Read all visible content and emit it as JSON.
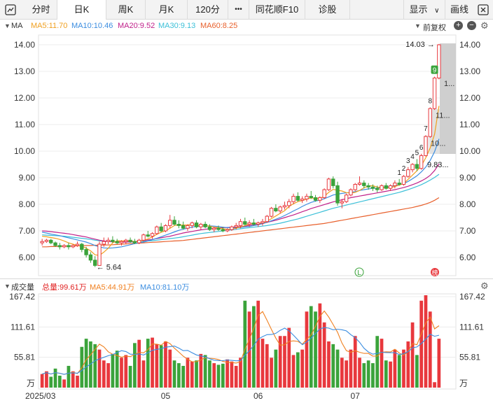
{
  "toolbar": {
    "tabs": [
      {
        "label": "分时",
        "active": false
      },
      {
        "label": "日K",
        "active": true
      },
      {
        "label": "周K",
        "active": false
      },
      {
        "label": "月K",
        "active": false
      },
      {
        "label": "120分",
        "active": false
      },
      {
        "label": "•••",
        "active": false
      },
      {
        "label": "同花顺F10",
        "active": false
      },
      {
        "label": "诊股",
        "active": false
      }
    ],
    "display_label": "显示",
    "draw_label": "画线"
  },
  "ma_legend": {
    "name": "MA",
    "items": [
      {
        "label": "MA5:11.70",
        "color": "#f0a020"
      },
      {
        "label": "MA10:10.46",
        "color": "#3b8de0"
      },
      {
        "label": "MA20:9.52",
        "color": "#c0208a"
      },
      {
        "label": "MA30:9.13",
        "color": "#3cc0d8"
      },
      {
        "label": "MA60:8.25",
        "color": "#e8602c"
      }
    ],
    "adjust_label": "前复权"
  },
  "price_axis": {
    "ticks": [
      "14.00",
      "13.00",
      "12.00",
      "11.00",
      "10.00",
      "9.00",
      "8.00",
      "7.00",
      "6.00"
    ],
    "high_label": "14.03",
    "low_label": "5.64",
    "last_label": "9.83...",
    "box_labels": [
      "1...",
      "11...",
      "10..."
    ],
    "count_labels": [
      "1",
      "2",
      "3",
      "4",
      "5",
      "6",
      "7",
      "8",
      "9"
    ],
    "marker_l": "L",
    "marker_bang": "榜"
  },
  "volume_legend": {
    "name": "成交量",
    "total": "总量:99.61万",
    "ma5": "MA5:44.91万",
    "ma10": "MA10:81.10万",
    "total_color": "#e02020",
    "ma5_color": "#f08020",
    "ma10_color": "#3b8de0",
    "ticks": [
      "167.42",
      "111.61",
      "55.81"
    ],
    "unit": "万"
  },
  "x_axis": {
    "labels": [
      "2025/03",
      "05",
      "06",
      "07"
    ]
  },
  "chart_data": {
    "type": "candlestick",
    "up_color": "#e8383d",
    "down_color": "#3ba33b",
    "ylim": [
      5.5,
      14.2
    ],
    "ohlc": [
      [
        6.55,
        6.7,
        6.45,
        6.6
      ],
      [
        6.6,
        6.7,
        6.55,
        6.65
      ],
      [
        6.65,
        6.7,
        6.5,
        6.55
      ],
      [
        6.55,
        6.6,
        6.4,
        6.45
      ],
      [
        6.45,
        6.55,
        6.3,
        6.4
      ],
      [
        6.4,
        6.5,
        6.35,
        6.45
      ],
      [
        6.45,
        6.55,
        6.3,
        6.4
      ],
      [
        6.4,
        6.5,
        6.35,
        6.45
      ],
      [
        6.45,
        6.6,
        6.4,
        6.5
      ],
      [
        6.5,
        6.55,
        6.2,
        6.3
      ],
      [
        6.3,
        6.4,
        6.0,
        6.1
      ],
      [
        6.1,
        6.2,
        5.8,
        5.9
      ],
      [
        5.9,
        6.05,
        5.64,
        5.7
      ],
      [
        5.7,
        6.6,
        5.7,
        6.5
      ],
      [
        6.5,
        6.75,
        6.4,
        6.6
      ],
      [
        6.6,
        6.75,
        6.5,
        6.65
      ],
      [
        6.65,
        6.8,
        6.55,
        6.6
      ],
      [
        6.6,
        6.7,
        6.5,
        6.55
      ],
      [
        6.55,
        6.65,
        6.45,
        6.6
      ],
      [
        6.6,
        6.7,
        6.5,
        6.65
      ],
      [
        6.65,
        6.75,
        6.55,
        6.6
      ],
      [
        6.6,
        6.7,
        6.5,
        6.55
      ],
      [
        6.55,
        6.7,
        6.5,
        6.65
      ],
      [
        6.65,
        6.9,
        6.6,
        6.85
      ],
      [
        6.85,
        7.0,
        6.75,
        6.8
      ],
      [
        6.8,
        6.95,
        6.7,
        6.9
      ],
      [
        6.9,
        7.2,
        6.85,
        7.15
      ],
      [
        7.15,
        7.3,
        6.95,
        7.0
      ],
      [
        7.0,
        7.25,
        6.95,
        7.2
      ],
      [
        7.2,
        7.6,
        7.1,
        7.4
      ],
      [
        7.4,
        7.55,
        7.2,
        7.25
      ],
      [
        7.25,
        7.4,
        7.1,
        7.2
      ],
      [
        7.2,
        7.35,
        7.05,
        7.1
      ],
      [
        7.1,
        7.25,
        7.0,
        7.2
      ],
      [
        7.2,
        7.35,
        7.1,
        7.3
      ],
      [
        7.3,
        7.4,
        7.1,
        7.15
      ],
      [
        7.15,
        7.3,
        7.05,
        7.25
      ],
      [
        7.25,
        7.35,
        7.1,
        7.15
      ],
      [
        7.15,
        7.25,
        7.0,
        7.05
      ],
      [
        7.05,
        7.15,
        6.95,
        7.1
      ],
      [
        7.1,
        7.2,
        7.0,
        7.05
      ],
      [
        7.05,
        7.15,
        6.95,
        7.0
      ],
      [
        7.0,
        7.1,
        6.95,
        7.05
      ],
      [
        7.05,
        7.2,
        7.0,
        7.15
      ],
      [
        7.15,
        7.3,
        7.05,
        7.2
      ],
      [
        7.2,
        7.45,
        7.1,
        7.35
      ],
      [
        7.35,
        7.5,
        7.2,
        7.25
      ],
      [
        7.25,
        7.4,
        7.15,
        7.3
      ],
      [
        7.3,
        7.45,
        7.2,
        7.25
      ],
      [
        7.25,
        7.35,
        7.15,
        7.3
      ],
      [
        7.3,
        7.45,
        7.2,
        7.35
      ],
      [
        7.35,
        7.6,
        7.3,
        7.55
      ],
      [
        7.55,
        7.9,
        7.5,
        7.85
      ],
      [
        7.85,
        8.0,
        7.7,
        7.75
      ],
      [
        7.75,
        7.95,
        7.65,
        7.9
      ],
      [
        7.9,
        8.1,
        7.8,
        7.95
      ],
      [
        7.95,
        8.2,
        7.85,
        8.1
      ],
      [
        8.1,
        8.4,
        8.0,
        8.3
      ],
      [
        8.3,
        8.45,
        8.1,
        8.15
      ],
      [
        8.15,
        8.3,
        8.05,
        8.2
      ],
      [
        8.2,
        8.4,
        8.1,
        8.3
      ],
      [
        8.3,
        8.5,
        8.2,
        8.25
      ],
      [
        8.25,
        8.35,
        8.1,
        8.15
      ],
      [
        8.15,
        8.3,
        8.05,
        8.25
      ],
      [
        8.25,
        8.6,
        8.2,
        8.55
      ],
      [
        8.55,
        9.0,
        8.5,
        8.95
      ],
      [
        8.95,
        9.05,
        8.6,
        8.7
      ],
      [
        8.7,
        8.85,
        7.95,
        8.05
      ],
      [
        8.05,
        8.2,
        7.85,
        8.1
      ],
      [
        8.1,
        8.4,
        8.05,
        8.35
      ],
      [
        8.35,
        8.6,
        8.3,
        8.55
      ],
      [
        8.55,
        8.8,
        8.5,
        8.75
      ],
      [
        8.75,
        9.05,
        8.7,
        8.8
      ],
      [
        8.8,
        8.9,
        8.6,
        8.7
      ],
      [
        8.7,
        8.8,
        8.55,
        8.65
      ],
      [
        8.65,
        8.75,
        8.5,
        8.6
      ],
      [
        8.6,
        8.7,
        8.45,
        8.55
      ],
      [
        8.55,
        8.75,
        8.5,
        8.7
      ],
      [
        8.7,
        8.8,
        8.55,
        8.6
      ],
      [
        8.6,
        8.75,
        8.5,
        8.7
      ],
      [
        8.7,
        8.9,
        8.6,
        8.8
      ],
      [
        8.8,
        8.95,
        8.7,
        8.75
      ],
      [
        8.75,
        9.1,
        8.7,
        9.05
      ],
      [
        9.05,
        9.4,
        9.0,
        9.3
      ],
      [
        9.3,
        9.55,
        9.2,
        9.5
      ],
      [
        9.5,
        9.7,
        9.25,
        9.35
      ],
      [
        9.35,
        9.9,
        9.3,
        9.83
      ],
      [
        9.83,
        10.6,
        9.8,
        10.55
      ],
      [
        10.55,
        11.65,
        10.5,
        11.6
      ],
      [
        11.6,
        12.8,
        11.55,
        12.75
      ],
      [
        12.75,
        14.03,
        12.7,
        14.0
      ]
    ],
    "ma5": [
      6.8,
      6.78,
      6.75,
      6.72,
      6.68,
      6.62,
      6.55,
      6.5,
      6.45,
      6.42,
      6.35,
      6.25,
      6.1,
      6.08,
      6.2,
      6.35,
      6.55,
      6.63,
      6.62,
      6.62,
      6.62,
      6.6,
      6.6,
      6.65,
      6.7,
      6.77,
      6.87,
      6.95,
      7.0,
      7.1,
      7.2,
      7.22,
      7.22,
      7.22,
      7.25,
      7.2,
      7.2,
      7.2,
      7.18,
      7.14,
      7.12,
      7.08,
      7.06,
      7.07,
      7.1,
      7.15,
      7.2,
      7.25,
      7.28,
      7.29,
      7.3,
      7.36,
      7.46,
      7.56,
      7.66,
      7.76,
      7.92,
      8.02,
      8.1,
      8.14,
      8.2,
      8.24,
      8.22,
      8.23,
      8.3,
      8.45,
      8.56,
      8.53,
      8.5,
      8.44,
      8.42,
      8.45,
      8.52,
      8.62,
      8.69,
      8.7,
      8.65,
      8.63,
      8.62,
      8.62,
      8.67,
      8.72,
      8.78,
      8.94,
      9.1,
      9.26,
      9.45,
      9.75,
      10.12,
      10.64,
      11.7
    ],
    "ma10": [
      6.95,
      6.92,
      6.88,
      6.85,
      6.82,
      6.78,
      6.74,
      6.7,
      6.66,
      6.62,
      6.58,
      6.52,
      6.45,
      6.4,
      6.36,
      6.35,
      6.36,
      6.38,
      6.4,
      6.44,
      6.48,
      6.52,
      6.55,
      6.58,
      6.62,
      6.67,
      6.72,
      6.78,
      6.84,
      6.9,
      6.96,
      7.02,
      7.06,
      7.1,
      7.14,
      7.17,
      7.18,
      7.19,
      7.19,
      7.18,
      7.16,
      7.14,
      7.12,
      7.12,
      7.12,
      7.13,
      7.15,
      7.17,
      7.2,
      7.23,
      7.27,
      7.32,
      7.38,
      7.44,
      7.5,
      7.58,
      7.66,
      7.75,
      7.83,
      7.92,
      8.0,
      8.07,
      8.12,
      8.16,
      8.21,
      8.28,
      8.35,
      8.38,
      8.41,
      8.43,
      8.45,
      8.48,
      8.52,
      8.55,
      8.58,
      8.6,
      8.61,
      8.63,
      8.65,
      8.67,
      8.7,
      8.73,
      8.78,
      8.86,
      8.96,
      9.07,
      9.22,
      9.4,
      9.65,
      9.98,
      10.46
    ],
    "ma20": [
      7.0,
      6.99,
      6.97,
      6.95,
      6.93,
      6.91,
      6.89,
      6.86,
      6.83,
      6.8,
      6.77,
      6.73,
      6.69,
      6.65,
      6.62,
      6.6,
      6.59,
      6.58,
      6.58,
      6.58,
      6.59,
      6.6,
      6.62,
      6.64,
      6.66,
      6.68,
      6.71,
      6.74,
      6.77,
      6.8,
      6.84,
      6.88,
      6.92,
      6.95,
      6.98,
      7.01,
      7.04,
      7.06,
      7.08,
      7.1,
      7.11,
      7.12,
      7.13,
      7.14,
      7.15,
      7.16,
      7.18,
      7.2,
      7.22,
      7.25,
      7.28,
      7.32,
      7.36,
      7.4,
      7.45,
      7.5,
      7.55,
      7.6,
      7.66,
      7.72,
      7.78,
      7.84,
      7.89,
      7.94,
      7.99,
      8.04,
      8.09,
      8.13,
      8.17,
      8.21,
      8.25,
      8.28,
      8.31,
      8.34,
      8.37,
      8.4,
      8.43,
      8.46,
      8.49,
      8.52,
      8.55,
      8.59,
      8.63,
      8.68,
      8.74,
      8.8,
      8.88,
      8.97,
      9.09,
      9.27,
      9.52
    ],
    "ma30": [
      6.85,
      6.84,
      6.83,
      6.82,
      6.81,
      6.8,
      6.78,
      6.76,
      6.74,
      6.72,
      6.7,
      6.68,
      6.65,
      6.63,
      6.61,
      6.6,
      6.59,
      6.58,
      6.58,
      6.58,
      6.58,
      6.59,
      6.6,
      6.61,
      6.62,
      6.63,
      6.65,
      6.67,
      6.69,
      6.71,
      6.73,
      6.75,
      6.78,
      6.81,
      6.84,
      6.87,
      6.9,
      6.92,
      6.94,
      6.96,
      6.98,
      7.0,
      7.02,
      7.04,
      7.06,
      7.08,
      7.1,
      7.12,
      7.14,
      7.16,
      7.18,
      7.2,
      7.23,
      7.26,
      7.29,
      7.33,
      7.37,
      7.41,
      7.45,
      7.5,
      7.55,
      7.6,
      7.65,
      7.7,
      7.75,
      7.8,
      7.85,
      7.89,
      7.93,
      7.97,
      8.01,
      8.05,
      8.09,
      8.13,
      8.17,
      8.21,
      8.25,
      8.29,
      8.33,
      8.37,
      8.41,
      8.45,
      8.5,
      8.55,
      8.61,
      8.67,
      8.74,
      8.82,
      8.91,
      9.01,
      9.13
    ],
    "ma60": [
      6.4,
      6.4,
      6.41,
      6.41,
      6.42,
      6.42,
      6.43,
      6.43,
      6.44,
      6.44,
      6.45,
      6.45,
      6.46,
      6.46,
      6.47,
      6.47,
      6.48,
      6.49,
      6.5,
      6.51,
      6.52,
      6.53,
      6.54,
      6.55,
      6.56,
      6.57,
      6.58,
      6.59,
      6.6,
      6.61,
      6.62,
      6.63,
      6.64,
      6.66,
      6.68,
      6.7,
      6.72,
      6.74,
      6.76,
      6.78,
      6.8,
      6.82,
      6.84,
      6.86,
      6.88,
      6.9,
      6.92,
      6.94,
      6.96,
      6.98,
      7.0,
      7.02,
      7.04,
      7.06,
      7.08,
      7.1,
      7.12,
      7.14,
      7.16,
      7.18,
      7.2,
      7.22,
      7.24,
      7.26,
      7.28,
      7.31,
      7.34,
      7.37,
      7.4,
      7.43,
      7.46,
      7.49,
      7.52,
      7.55,
      7.58,
      7.61,
      7.64,
      7.67,
      7.7,
      7.73,
      7.76,
      7.79,
      7.82,
      7.85,
      7.88,
      7.92,
      7.96,
      8.01,
      8.07,
      8.15,
      8.25
    ],
    "volume": [
      25,
      30,
      20,
      35,
      22,
      15,
      40,
      30,
      22,
      75,
      90,
      85,
      80,
      70,
      50,
      45,
      62,
      68,
      55,
      60,
      40,
      82,
      88,
      50,
      90,
      92,
      80,
      78,
      85,
      70,
      50,
      45,
      40,
      55,
      48,
      50,
      62,
      60,
      50,
      45,
      42,
      44,
      52,
      48,
      40,
      55,
      160,
      140,
      150,
      160,
      90,
      80,
      55,
      70,
      95,
      95,
      110,
      60,
      65,
      70,
      140,
      150,
      140,
      155,
      120,
      85,
      80,
      70,
      55,
      50,
      70,
      95,
      55,
      45,
      50,
      45,
      95,
      90,
      50,
      48,
      70,
      60,
      70,
      85,
      120,
      60,
      160,
      170,
      140,
      10,
      90
    ]
  }
}
